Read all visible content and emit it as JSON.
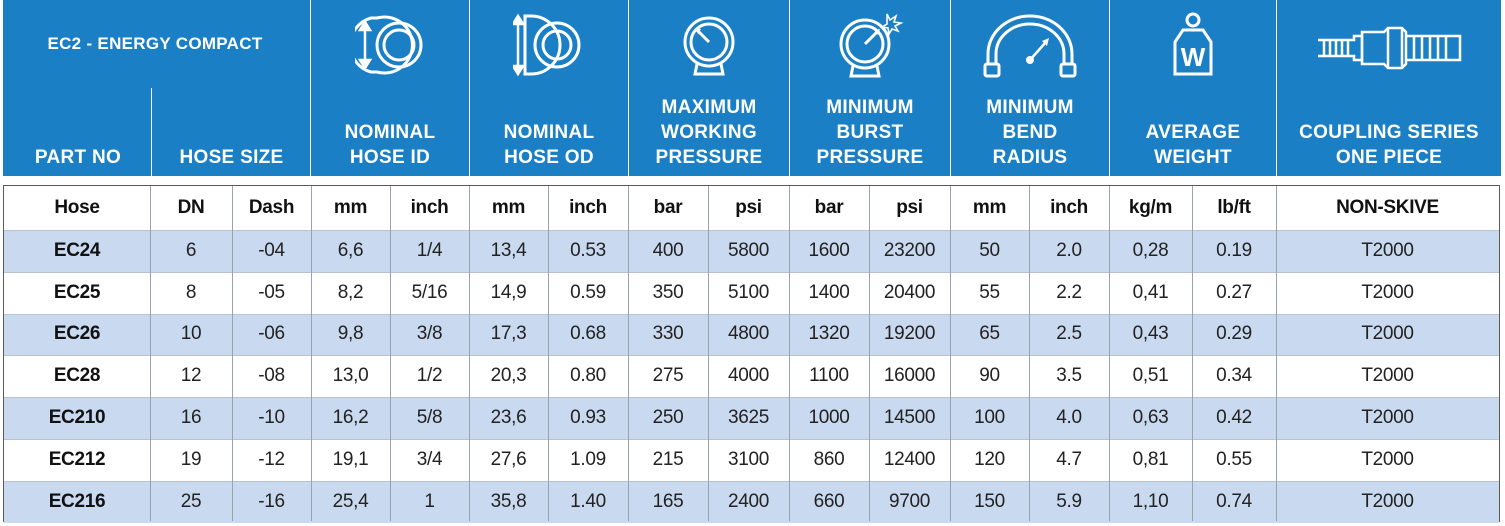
{
  "header": {
    "title": "EC2 - ENERGY COMPACT",
    "columns": [
      {
        "key": "part_no",
        "label": "PART NO",
        "icon": "none"
      },
      {
        "key": "hose_size",
        "label": "HOSE SIZE",
        "icon": "none"
      },
      {
        "key": "nominal_hose_id",
        "label": "NOMINAL HOSE ID",
        "icon": "hose-inner-diameter-icon"
      },
      {
        "key": "nominal_hose_od",
        "label": "NOMINAL HOSE OD",
        "icon": "hose-outer-diameter-icon"
      },
      {
        "key": "max_working_pressure",
        "label": "MAXIMUM WORKING PRESSURE",
        "icon": "pressure-gauge-icon"
      },
      {
        "key": "min_burst_pressure",
        "label": "MINIMUM BURST PRESSURE",
        "icon": "burst-gauge-icon"
      },
      {
        "key": "min_bend_radius",
        "label": "MINIMUM BEND RADIUS",
        "icon": "bend-radius-icon"
      },
      {
        "key": "average_weight",
        "label": "AVERAGE WEIGHT",
        "icon": "weight-icon"
      },
      {
        "key": "coupling_series",
        "label": "COUPLING SERIES ONE PIECE",
        "icon": "coupling-fitting-icon"
      }
    ],
    "id_lines": [
      "NOMINAL",
      "HOSE ID"
    ],
    "od_lines": [
      "NOMINAL",
      "HOSE OD"
    ],
    "wp_lines": [
      "MAXIMUM",
      "WORKING",
      "PRESSURE"
    ],
    "bp_lines": [
      "MINIMUM",
      "BURST",
      "PRESSURE"
    ],
    "br_lines": [
      "MINIMUM",
      "BEND",
      "RADIUS"
    ],
    "aw_lines": [
      "AVERAGE",
      "WEIGHT"
    ],
    "cs_lines": [
      "COUPLING SERIES",
      "ONE PIECE"
    ],
    "weight_icon_letter": "W"
  },
  "units": [
    "Hose",
    "DN",
    "Dash",
    "mm",
    "inch",
    "mm",
    "inch",
    "bar",
    "psi",
    "bar",
    "psi",
    "mm",
    "inch",
    "kg/m",
    "lb/ft",
    "NON-SKIVE"
  ],
  "rows": [
    [
      "EC24",
      "6",
      "-04",
      "6,6",
      "1/4",
      "13,4",
      "0.53",
      "400",
      "5800",
      "1600",
      "23200",
      "50",
      "2.0",
      "0,28",
      "0.19",
      "T2000"
    ],
    [
      "EC25",
      "8",
      "-05",
      "8,2",
      "5/16",
      "14,9",
      "0.59",
      "350",
      "5100",
      "1400",
      "20400",
      "55",
      "2.2",
      "0,41",
      "0.27",
      "T2000"
    ],
    [
      "EC26",
      "10",
      "-06",
      "9,8",
      "3/8",
      "17,3",
      "0.68",
      "330",
      "4800",
      "1320",
      "19200",
      "65",
      "2.5",
      "0,43",
      "0.29",
      "T2000"
    ],
    [
      "EC28",
      "12",
      "-08",
      "13,0",
      "1/2",
      "20,3",
      "0.80",
      "275",
      "4000",
      "1100",
      "16000",
      "90",
      "3.5",
      "0,51",
      "0.34",
      "T2000"
    ],
    [
      "EC210",
      "16",
      "-10",
      "16,2",
      "5/8",
      "23,6",
      "0.93",
      "250",
      "3625",
      "1000",
      "14500",
      "100",
      "4.0",
      "0,63",
      "0.42",
      "T2000"
    ],
    [
      "EC212",
      "19",
      "-12",
      "19,1",
      "3/4",
      "27,6",
      "1.09",
      "215",
      "3100",
      "860",
      "12400",
      "120",
      "4.7",
      "0,81",
      "0.55",
      "T2000"
    ],
    [
      "EC216",
      "25",
      "-16",
      "25,4",
      "1",
      "35,8",
      "1.40",
      "165",
      "2400",
      "660",
      "9700",
      "150",
      "5.9",
      "1,10",
      "0.74",
      "T2000"
    ]
  ],
  "colors": {
    "header_blue": "#1a7fc4",
    "row_alt": "#c9d9ef",
    "row_plain": "#ffffff"
  }
}
